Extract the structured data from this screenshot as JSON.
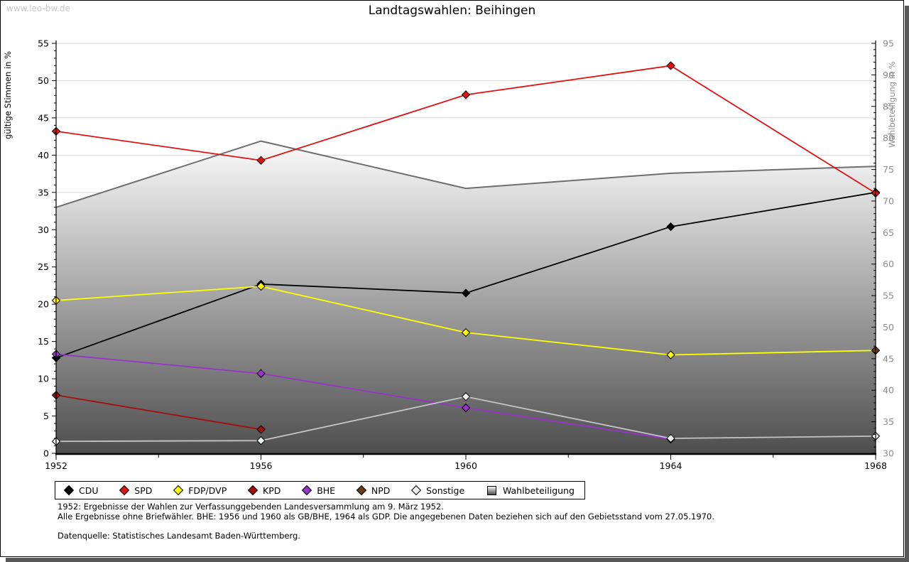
{
  "watermark": "www.leo-bw.de",
  "title": "Landtagswahlen: Beihingen",
  "footnotes": {
    "line1": "1952: Ergebnisse der Wahlen zur Verfassunggebenden Landesversammlung am 9. März 1952.",
    "line2": "Alle Ergebnisse ohne Briefwähler. BHE: 1956 und 1960 als GB/BHE, 1964 als GDP. Die angegebenen Daten beziehen sich auf den Gebietsstand vom 27.05.1970.",
    "source": "Datenquelle: Statistisches Landesamt Baden-Württemberg."
  },
  "chart_data": {
    "type": "line",
    "title": "Landtagswahlen: Beihingen",
    "x": [
      1952,
      1956,
      1960,
      1964,
      1968
    ],
    "ylabel": "gültige Stimmen in %",
    "y2label": "Wahlbeteiligung in %",
    "ylim": [
      0,
      55
    ],
    "ytick_step": 5,
    "y2lim": [
      30,
      95
    ],
    "y2tick_step": 5,
    "grid": true,
    "legend_position": "bottom",
    "colors": {
      "grid": "#d8d8d8",
      "axis": "#000000",
      "right_axis_text": "#8c8c8c",
      "watermark": "#c8c8c8"
    },
    "series": [
      {
        "name": "CDU",
        "axis": "left",
        "color": "#000000",
        "marker": "diamond",
        "values": [
          12.8,
          22.7,
          21.5,
          30.4,
          35.0
        ]
      },
      {
        "name": "SPD",
        "axis": "left",
        "color": "#e01212",
        "marker": "diamond",
        "values": [
          43.2,
          39.3,
          48.1,
          52.0,
          34.9
        ]
      },
      {
        "name": "FDP/DVP",
        "axis": "left",
        "color": "#ffff00",
        "marker": "diamond",
        "values": [
          20.5,
          22.4,
          16.2,
          13.2,
          13.8
        ]
      },
      {
        "name": "KPD",
        "axis": "left",
        "color": "#a50d0d",
        "marker": "diamond",
        "values": [
          7.8,
          3.2,
          null,
          null,
          null
        ]
      },
      {
        "name": "BHE",
        "axis": "left",
        "color": "#9933cc",
        "marker": "diamond",
        "values": [
          13.3,
          10.7,
          6.1,
          1.9,
          null
        ]
      },
      {
        "name": "NPD",
        "axis": "left",
        "color": "#6e3a14",
        "marker": "diamond",
        "values": [
          null,
          null,
          null,
          null,
          13.8
        ]
      },
      {
        "name": "Sonstige",
        "axis": "left",
        "color": "#c4c4c4",
        "marker": "diamond",
        "marker_fill": "#ededed",
        "values": [
          1.6,
          1.7,
          7.6,
          2.0,
          2.3
        ]
      },
      {
        "name": "Wahlbeteiligung",
        "axis": "right",
        "color": "#6e6e6e",
        "marker": "none",
        "area": true,
        "area_gradient": [
          "#fbfbfb",
          "#4e4e4e"
        ],
        "values": [
          69.0,
          79.5,
          72.0,
          74.4,
          75.5
        ]
      }
    ]
  }
}
